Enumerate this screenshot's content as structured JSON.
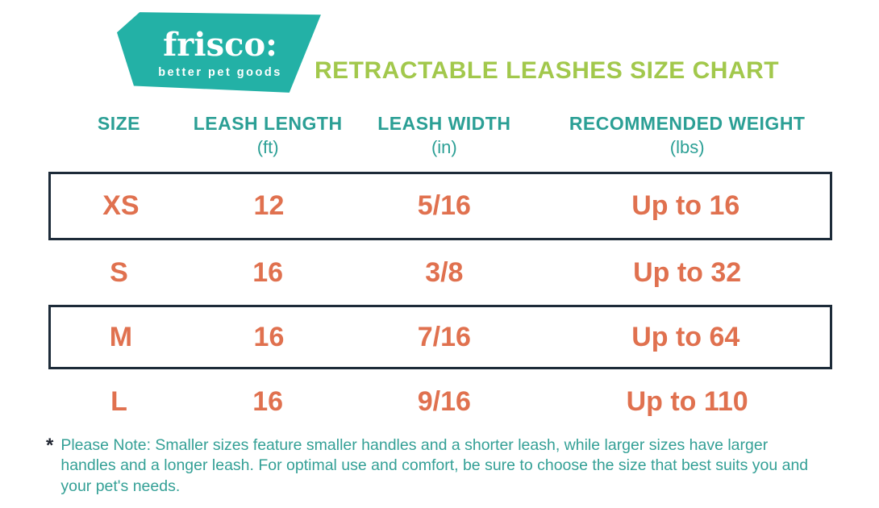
{
  "logo": {
    "brand": "frisco:",
    "tagline": "better pet goods"
  },
  "title": "RETRACTABLE LEASHES SIZE CHART",
  "table": {
    "columns": [
      {
        "label": "SIZE",
        "unit": ""
      },
      {
        "label": "LEASH LENGTH",
        "unit": "(ft)"
      },
      {
        "label": "LEASH WIDTH",
        "unit": "(in)"
      },
      {
        "label": "RECOMMENDED WEIGHT",
        "unit": "(lbs)"
      }
    ],
    "rows": [
      {
        "size": "XS",
        "length": "12",
        "width": "5/16",
        "weight": "Up to 16",
        "boxed": true
      },
      {
        "size": "S",
        "length": "16",
        "width": "3/8",
        "weight": "Up to 32",
        "boxed": false
      },
      {
        "size": "M",
        "length": "16",
        "width": "7/16",
        "weight": "Up to 64",
        "boxed": true
      },
      {
        "size": "L",
        "length": "16",
        "width": "9/16",
        "weight": "Up to 110",
        "boxed": false
      }
    ]
  },
  "footnote": {
    "marker": "*",
    "text": "Please Note: Smaller sizes feature smaller handles and a shorter leash, while larger sizes have larger handles and a longer leash. For optimal use and comfort, be sure to choose the size that best suits you and your pet's needs."
  },
  "colors": {
    "logo_teal": "#23b1a6",
    "title_green": "#a2c84c",
    "header_teal": "#2b9f95",
    "row_orange": "#e0714f",
    "box_navy": "#1d2b39",
    "footnote_teal": "#34a096"
  }
}
